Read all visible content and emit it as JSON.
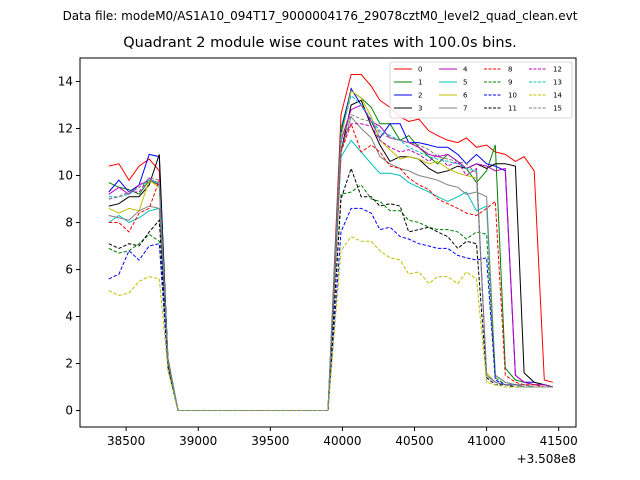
{
  "chart_data": {
    "type": "line",
    "suptitle": "Data file: modeM0/AS1A10_094T17_9000004176_29078cztM0_level2_quad_clean.evt",
    "title": "Quadrant 2 module wise count rates with 100.0s bins.",
    "xlabel": "",
    "ylabel": "",
    "x_offset_label": "+3.508e8",
    "xlim": [
      38180,
      41620
    ],
    "ylim": [
      -0.7,
      15
    ],
    "xticks": [
      38500,
      39000,
      39500,
      40000,
      40500,
      41000,
      41500
    ],
    "yticks": [
      0,
      2,
      4,
      6,
      8,
      10,
      12,
      14
    ],
    "legend_position": "top-right",
    "grid": false,
    "x": [
      38380,
      38450,
      38520,
      38590,
      38660,
      38730,
      38790,
      38860,
      38930,
      39000,
      39100,
      39200,
      39300,
      39400,
      39500,
      39600,
      39700,
      39800,
      39900,
      39990,
      40060,
      40130,
      40200,
      40260,
      40330,
      40400,
      40460,
      40530,
      40600,
      40660,
      40730,
      40800,
      40860,
      40930,
      41000,
      41060,
      41130,
      41200,
      41260,
      41330,
      41400,
      41460
    ],
    "series": [
      {
        "name": "0",
        "color": "#ff0000",
        "style": "solid",
        "values": [
          10.4,
          10.5,
          9.8,
          10.4,
          10.7,
          10.2,
          2.2,
          0,
          0,
          0,
          0,
          0,
          0,
          0,
          0,
          0,
          0,
          0,
          0,
          12.6,
          14.3,
          14.3,
          13.8,
          13.2,
          12.9,
          12.5,
          12.3,
          12.4,
          11.9,
          11.7,
          11.5,
          11.4,
          11.6,
          11.2,
          11.3,
          11.0,
          10.9,
          10.6,
          10.8,
          10.2,
          1.3,
          1.2
        ]
      },
      {
        "name": "1",
        "color": "#008000",
        "style": "solid",
        "values": [
          9.7,
          9.5,
          9.4,
          9.2,
          9.8,
          9.6,
          2.2,
          0,
          0,
          0,
          0,
          0,
          0,
          0,
          0,
          0,
          0,
          0,
          0,
          12.0,
          13.6,
          13.3,
          12.9,
          12.2,
          12.2,
          11.5,
          11.7,
          11.2,
          10.8,
          10.5,
          10.9,
          10.6,
          10.3,
          9.7,
          10.2,
          11.3,
          1.8,
          1.3,
          1.2,
          1.1,
          1.1,
          1.0
        ]
      },
      {
        "name": "2",
        "color": "#0000ff",
        "style": "solid",
        "values": [
          9.3,
          9.8,
          9.3,
          9.6,
          10.9,
          10.8,
          2.0,
          0,
          0,
          0,
          0,
          0,
          0,
          0,
          0,
          0,
          0,
          0,
          0,
          11.8,
          13.7,
          13.0,
          12.3,
          11.6,
          12.2,
          12.2,
          11.4,
          11.4,
          11.3,
          11.2,
          11.2,
          10.9,
          10.5,
          10.9,
          10.5,
          10.4,
          10.2,
          1.5,
          1.2,
          1.2,
          1.1,
          1.0
        ]
      },
      {
        "name": "3",
        "color": "#000000",
        "style": "solid",
        "values": [
          8.7,
          8.8,
          9.1,
          9.1,
          9.6,
          10.9,
          2.0,
          0,
          0,
          0,
          0,
          0,
          0,
          0,
          0,
          0,
          0,
          0,
          0,
          11.0,
          13.0,
          13.2,
          12.1,
          11.3,
          10.6,
          10.8,
          10.8,
          10.7,
          10.3,
          10.1,
          10.2,
          10.4,
          10.3,
          10.5,
          10.3,
          10.5,
          10.5,
          10.4,
          1.6,
          1.2,
          1.1,
          1.0
        ]
      },
      {
        "name": "4",
        "color": "#bf00bf",
        "style": "solid",
        "values": [
          9.2,
          9.5,
          9.2,
          9.6,
          9.8,
          9.7,
          2.0,
          0,
          0,
          0,
          0,
          0,
          0,
          0,
          0,
          0,
          0,
          0,
          0,
          11.5,
          12.8,
          13.0,
          12.3,
          12.1,
          11.6,
          11.5,
          11.4,
          11.2,
          10.9,
          10.8,
          10.9,
          10.6,
          10.3,
          10.5,
          10.4,
          10.2,
          10.3,
          1.5,
          1.2,
          1.1,
          1.1,
          1.0
        ]
      },
      {
        "name": "5",
        "color": "#00bfbf",
        "style": "solid",
        "values": [
          8.0,
          8.3,
          8.0,
          8.2,
          8.5,
          8.6,
          2.1,
          0,
          0,
          0,
          0,
          0,
          0,
          0,
          0,
          0,
          0,
          0,
          0,
          10.8,
          11.5,
          11.0,
          10.5,
          10.1,
          10.1,
          10.0,
          9.7,
          9.5,
          9.3,
          9.1,
          8.9,
          9.1,
          9.3,
          8.5,
          8.7,
          1.5,
          1.2,
          1.1,
          1.1,
          1.0,
          1.0,
          1.0
        ]
      },
      {
        "name": "6",
        "color": "#bfbf00",
        "style": "solid",
        "values": [
          8.6,
          8.4,
          8.6,
          8.5,
          9.8,
          9.5,
          2.0,
          0,
          0,
          0,
          0,
          0,
          0,
          0,
          0,
          0,
          0,
          0,
          0,
          11.6,
          13.6,
          13.3,
          12.5,
          11.5,
          11.1,
          10.7,
          10.8,
          10.7,
          10.5,
          10.6,
          10.3,
          10.1,
          10.0,
          9.9,
          1.6,
          1.2,
          1.1,
          1.1,
          1.0,
          1.0,
          1.0,
          1.0
        ]
      },
      {
        "name": "7",
        "color": "#808080",
        "style": "solid",
        "values": [
          8.3,
          8.2,
          8.1,
          8.5,
          8.7,
          8.6,
          2.0,
          0,
          0,
          0,
          0,
          0,
          0,
          0,
          0,
          0,
          0,
          0,
          0,
          11.0,
          12.5,
          12.0,
          11.6,
          10.8,
          10.5,
          10.3,
          10.2,
          10.0,
          9.9,
          9.8,
          9.6,
          9.5,
          9.2,
          9.3,
          9.1,
          1.5,
          1.2,
          1.1,
          1.1,
          1.0,
          1.0,
          1.0
        ]
      },
      {
        "name": "8",
        "color": "#ff0000",
        "style": "dashed",
        "values": [
          8.0,
          8.0,
          7.6,
          8.4,
          8.6,
          9.8,
          2.0,
          0,
          0,
          0,
          0,
          0,
          0,
          0,
          0,
          0,
          0,
          0,
          0,
          11.0,
          12.2,
          11.0,
          11.3,
          11.0,
          10.4,
          10.3,
          9.9,
          9.6,
          9.4,
          9.0,
          8.8,
          8.6,
          8.4,
          8.3,
          8.6,
          8.9,
          1.5,
          1.2,
          1.1,
          1.1,
          1.0,
          1.0
        ]
      },
      {
        "name": "9",
        "color": "#008000",
        "style": "dashed",
        "values": [
          6.9,
          6.7,
          6.8,
          7.1,
          7.5,
          7.2,
          1.9,
          0,
          0,
          0,
          0,
          0,
          0,
          0,
          0,
          0,
          0,
          0,
          0,
          9.2,
          9.3,
          9.6,
          9.0,
          8.9,
          8.5,
          8.5,
          8.1,
          8.0,
          7.8,
          7.7,
          7.7,
          7.6,
          7.3,
          7.6,
          7.5,
          1.4,
          1.1,
          1.1,
          1.0,
          1.0,
          1.0,
          1.0
        ]
      },
      {
        "name": "10",
        "color": "#0000ff",
        "style": "dashed",
        "values": [
          5.6,
          5.8,
          6.8,
          6.4,
          7.0,
          7.1,
          1.8,
          0,
          0,
          0,
          0,
          0,
          0,
          0,
          0,
          0,
          0,
          0,
          0,
          7.6,
          8.6,
          8.6,
          8.4,
          7.7,
          7.8,
          7.4,
          7.3,
          7.1,
          7.0,
          6.9,
          6.9,
          6.6,
          6.5,
          6.4,
          6.5,
          1.3,
          1.1,
          1.1,
          1.0,
          1.0,
          1.0,
          1.0
        ]
      },
      {
        "name": "11",
        "color": "#000000",
        "style": "dashed",
        "values": [
          7.1,
          6.9,
          7.1,
          7.0,
          7.6,
          8.1,
          1.9,
          0,
          0,
          0,
          0,
          0,
          0,
          0,
          0,
          0,
          0,
          0,
          0,
          9.0,
          10.3,
          9.1,
          9.1,
          8.7,
          8.8,
          8.7,
          7.6,
          7.7,
          7.8,
          7.6,
          7.4,
          6.9,
          7.2,
          7.1,
          1.4,
          1.1,
          1.1,
          1.0,
          1.0,
          1.0,
          1.0,
          1.0
        ]
      },
      {
        "name": "12",
        "color": "#bf00bf",
        "style": "dashed",
        "values": [
          9.0,
          9.1,
          9.3,
          9.3,
          9.9,
          9.6,
          2.1,
          0,
          0,
          0,
          0,
          0,
          0,
          0,
          0,
          0,
          0,
          0,
          0,
          11.4,
          12.2,
          12.2,
          12.1,
          11.5,
          11.2,
          11.0,
          11.1,
          10.9,
          10.6,
          10.9,
          10.4,
          10.6,
          10.0,
          10.3,
          1.5,
          1.2,
          1.1,
          1.1,
          1.0,
          1.0,
          1.0,
          1.0
        ]
      },
      {
        "name": "13",
        "color": "#00bfbf",
        "style": "dashed",
        "values": [
          9.1,
          9.1,
          9.2,
          9.5,
          9.8,
          9.7,
          2.1,
          0,
          0,
          0,
          0,
          0,
          0,
          0,
          0,
          0,
          0,
          0,
          0,
          11.8,
          13.4,
          13.0,
          12.4,
          11.9,
          11.7,
          11.5,
          11.2,
          11.0,
          10.8,
          10.7,
          10.6,
          10.5,
          10.3,
          10.2,
          1.5,
          1.2,
          1.1,
          1.1,
          1.0,
          1.0,
          1.0,
          1.0
        ]
      },
      {
        "name": "14",
        "color": "#bfbf00",
        "style": "dashed",
        "values": [
          5.1,
          4.9,
          5.0,
          5.5,
          5.7,
          5.6,
          1.7,
          0,
          0,
          0,
          0,
          0,
          0,
          0,
          0,
          0,
          0,
          0,
          0,
          6.8,
          7.4,
          7.2,
          7.2,
          6.8,
          6.5,
          6.4,
          5.8,
          5.9,
          5.4,
          5.7,
          5.7,
          5.4,
          5.9,
          5.6,
          1.2,
          1.1,
          1.0,
          1.0,
          1.0,
          1.0,
          1.0,
          1.0
        ]
      },
      {
        "name": "15",
        "color": "#808080",
        "style": "dashed",
        "values": [
          9.0,
          9.1,
          9.3,
          9.5,
          9.9,
          9.8,
          2.1,
          0,
          0,
          0,
          0,
          0,
          0,
          0,
          0,
          0,
          0,
          0,
          0,
          11.5,
          12.6,
          12.4,
          12.3,
          11.8,
          11.6,
          11.5,
          11.4,
          11.3,
          11.1,
          10.8,
          10.7,
          10.6,
          10.5,
          10.1,
          1.5,
          1.2,
          1.1,
          1.1,
          1.0,
          1.0,
          1.0,
          1.0
        ]
      }
    ]
  }
}
